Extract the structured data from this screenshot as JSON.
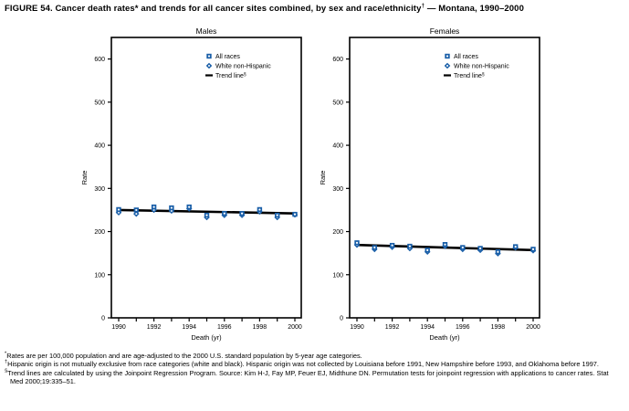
{
  "figure": {
    "title_pre": "FIGURE 54. Cancer death rates* and trends for all cancer sites combined, by sex and race/ethnicity",
    "title_sup": "†",
    "title_post": " — Montana, 1990–2000"
  },
  "colors": {
    "marker_blue": "#1a5fa8",
    "axis_black": "#000000"
  },
  "chart_data": [
    {
      "type": "scatter",
      "title": "Males",
      "xlabel": "Death (yr)",
      "ylabel": "Rate",
      "ylim": [
        0,
        650
      ],
      "y_ticks": [
        0,
        100,
        200,
        300,
        400,
        500,
        600
      ],
      "x": [
        1990,
        1991,
        1992,
        1993,
        1994,
        1995,
        1996,
        1997,
        1998,
        1999,
        2000
      ],
      "x_labeled_ticks": [
        1990,
        1992,
        1994,
        1996,
        1998,
        2000
      ],
      "grid": false,
      "legend_position": "top-right-inside",
      "series": [
        {
          "name": "All races",
          "marker": "square",
          "values": [
            251,
            250,
            257,
            255,
            257,
            238,
            242,
            242,
            251,
            238,
            240
          ]
        },
        {
          "name": "White non-Hispanic",
          "marker": "diamond",
          "values": [
            244,
            241,
            250,
            248,
            253,
            233,
            238,
            238,
            246,
            233,
            239
          ]
        }
      ],
      "trend_line": {
        "name": "Trend line",
        "superscript": "§",
        "start_value": 250,
        "end_value": 242
      }
    },
    {
      "type": "scatter",
      "title": "Females",
      "xlabel": "Death (yr)",
      "ylabel": "Rate",
      "ylim": [
        0,
        650
      ],
      "y_ticks": [
        0,
        100,
        200,
        300,
        400,
        500,
        600
      ],
      "x": [
        1990,
        1991,
        1992,
        1993,
        1994,
        1995,
        1996,
        1997,
        1998,
        1999,
        2000
      ],
      "x_labeled_ticks": [
        1990,
        1992,
        1994,
        1996,
        1998,
        2000
      ],
      "grid": false,
      "legend_position": "top-right-inside",
      "series": [
        {
          "name": "All races",
          "marker": "square",
          "values": [
            174,
            163,
            168,
            166,
            157,
            170,
            163,
            161,
            153,
            165,
            159
          ]
        },
        {
          "name": "White non-Hispanic",
          "marker": "diamond",
          "values": [
            169,
            159,
            164,
            161,
            153,
            166,
            159,
            157,
            149,
            163,
            156
          ]
        }
      ],
      "trend_line": {
        "name": "Trend line",
        "superscript": "§",
        "start_value": 169,
        "end_value": 157
      }
    }
  ],
  "footnotes": [
    {
      "marker": "*",
      "text": "Rates are per 100,000 population and are age-adjusted to the 2000 U.S. standard population by 5-year age categories."
    },
    {
      "marker": "†",
      "text": "Hispanic origin is not mutually exclusive from race categories (white and black). Hispanic origin was not collected by Louisiana before 1991, New Hampshire before 1993, and Oklahoma before 1997."
    },
    {
      "marker": "§",
      "text": "Trend lines are calculated by using the Joinpoint Regression Program. Source: Kim H-J, Fay MP, Feuer EJ, Midthune DN. Permutation tests for joinpoint regression with applications to cancer rates. Stat Med 2000;19:335–51."
    }
  ]
}
